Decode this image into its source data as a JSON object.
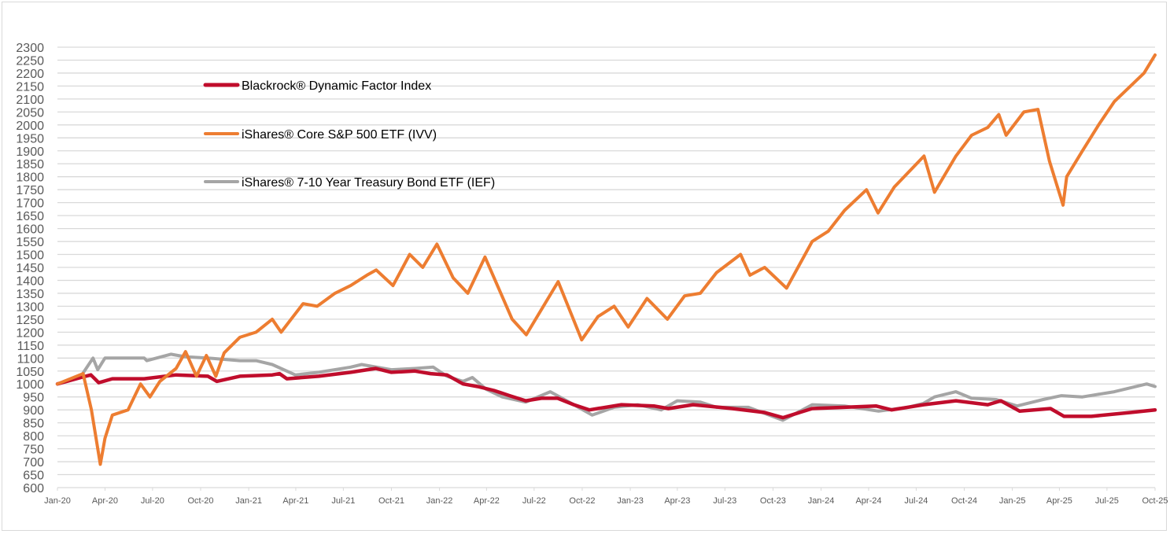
{
  "chart_data": {
    "type": "line",
    "title": "",
    "xlabel": "",
    "ylabel": "",
    "ylim": [
      600,
      2300
    ],
    "ytick_step": 50,
    "xlim": [
      "2020-01-01",
      "2025-10-01"
    ],
    "x_ticks": [
      "Jan-20",
      "Apr-20",
      "Jul-20",
      "Oct-20",
      "Jan-21",
      "Apr-21",
      "Jul-21",
      "Oct-21",
      "Jan-22",
      "Apr-22",
      "Jul-22",
      "Oct-22",
      "Jan-23",
      "Apr-23",
      "Jul-23",
      "Oct-23",
      "Jan-24",
      "Apr-24",
      "Jul-24",
      "Oct-24",
      "Jan-25",
      "Apr-25",
      "Jul-25",
      "Oct-25"
    ],
    "grid": "horizontal",
    "legend_placement": "top-left",
    "series": [
      {
        "name": "Blackrock® Dynamic Factor Index",
        "color": "#c00d2c",
        "points": [
          [
            "2020-01-01",
            1000
          ],
          [
            "2020-02-15",
            1025
          ],
          [
            "2020-03-05",
            1035
          ],
          [
            "2020-03-20",
            1005
          ],
          [
            "2020-04-15",
            1020
          ],
          [
            "2020-06-15",
            1020
          ],
          [
            "2020-08-15",
            1035
          ],
          [
            "2020-10-15",
            1030
          ],
          [
            "2020-11-01",
            1010
          ],
          [
            "2020-12-15",
            1030
          ],
          [
            "2021-02-15",
            1035
          ],
          [
            "2021-03-01",
            1040
          ],
          [
            "2021-03-15",
            1020
          ],
          [
            "2021-05-15",
            1030
          ],
          [
            "2021-07-15",
            1045
          ],
          [
            "2021-09-01",
            1060
          ],
          [
            "2021-10-01",
            1045
          ],
          [
            "2021-11-15",
            1050
          ],
          [
            "2021-12-15",
            1040
          ],
          [
            "2022-01-15",
            1035
          ],
          [
            "2022-02-15",
            1000
          ],
          [
            "2022-03-15",
            990
          ],
          [
            "2022-04-15",
            975
          ],
          [
            "2022-05-15",
            955
          ],
          [
            "2022-06-15",
            935
          ],
          [
            "2022-07-15",
            945
          ],
          [
            "2022-08-15",
            945
          ],
          [
            "2022-09-15",
            920
          ],
          [
            "2022-10-15",
            900
          ],
          [
            "2022-12-15",
            920
          ],
          [
            "2023-02-15",
            915
          ],
          [
            "2023-03-15",
            905
          ],
          [
            "2023-05-01",
            920
          ],
          [
            "2023-07-15",
            905
          ],
          [
            "2023-09-15",
            890
          ],
          [
            "2023-10-20",
            870
          ],
          [
            "2023-12-15",
            905
          ],
          [
            "2024-02-15",
            910
          ],
          [
            "2024-04-15",
            915
          ],
          [
            "2024-05-15",
            900
          ],
          [
            "2024-07-15",
            920
          ],
          [
            "2024-09-15",
            935
          ],
          [
            "2024-11-15",
            920
          ],
          [
            "2024-12-10",
            935
          ],
          [
            "2025-01-15",
            895
          ],
          [
            "2025-03-15",
            905
          ],
          [
            "2025-04-10",
            875
          ],
          [
            "2025-06-01",
            875
          ],
          [
            "2025-08-15",
            890
          ],
          [
            "2025-10-01",
            900
          ]
        ]
      },
      {
        "name": "iShares® Core S&P 500 ETF (IVV)",
        "color": "#ed7d31",
        "points": [
          [
            "2020-01-01",
            1000
          ],
          [
            "2020-02-19",
            1040
          ],
          [
            "2020-03-06",
            900
          ],
          [
            "2020-03-23",
            690
          ],
          [
            "2020-04-01",
            790
          ],
          [
            "2020-04-15",
            880
          ],
          [
            "2020-05-15",
            900
          ],
          [
            "2020-06-08",
            1000
          ],
          [
            "2020-06-26",
            950
          ],
          [
            "2020-07-15",
            1010
          ],
          [
            "2020-08-15",
            1060
          ],
          [
            "2020-09-02",
            1125
          ],
          [
            "2020-09-23",
            1030
          ],
          [
            "2020-10-12",
            1110
          ],
          [
            "2020-10-30",
            1030
          ],
          [
            "2020-11-15",
            1120
          ],
          [
            "2020-12-15",
            1180
          ],
          [
            "2021-01-15",
            1200
          ],
          [
            "2021-02-15",
            1250
          ],
          [
            "2021-03-04",
            1200
          ],
          [
            "2021-04-15",
            1310
          ],
          [
            "2021-05-12",
            1300
          ],
          [
            "2021-06-15",
            1350
          ],
          [
            "2021-07-15",
            1380
          ],
          [
            "2021-08-15",
            1420
          ],
          [
            "2021-09-02",
            1440
          ],
          [
            "2021-10-04",
            1380
          ],
          [
            "2021-11-05",
            1500
          ],
          [
            "2021-11-30",
            1450
          ],
          [
            "2021-12-27",
            1540
          ],
          [
            "2022-01-27",
            1410
          ],
          [
            "2022-02-24",
            1350
          ],
          [
            "2022-03-29",
            1490
          ],
          [
            "2022-05-20",
            1250
          ],
          [
            "2022-06-16",
            1190
          ],
          [
            "2022-08-16",
            1395
          ],
          [
            "2022-09-30",
            1170
          ],
          [
            "2022-10-31",
            1260
          ],
          [
            "2022-12-01",
            1300
          ],
          [
            "2022-12-28",
            1220
          ],
          [
            "2023-02-02",
            1330
          ],
          [
            "2023-03-13",
            1250
          ],
          [
            "2023-04-15",
            1340
          ],
          [
            "2023-05-15",
            1350
          ],
          [
            "2023-06-15",
            1430
          ],
          [
            "2023-07-31",
            1500
          ],
          [
            "2023-08-18",
            1420
          ],
          [
            "2023-09-15",
            1450
          ],
          [
            "2023-10-27",
            1370
          ],
          [
            "2023-12-15",
            1550
          ],
          [
            "2024-01-15",
            1590
          ],
          [
            "2024-02-15",
            1670
          ],
          [
            "2024-03-28",
            1750
          ],
          [
            "2024-04-19",
            1660
          ],
          [
            "2024-05-20",
            1760
          ],
          [
            "2024-07-16",
            1880
          ],
          [
            "2024-08-05",
            1740
          ],
          [
            "2024-09-15",
            1880
          ],
          [
            "2024-10-15",
            1960
          ],
          [
            "2024-11-15",
            1990
          ],
          [
            "2024-12-06",
            2040
          ],
          [
            "2024-12-20",
            1960
          ],
          [
            "2025-01-23",
            2050
          ],
          [
            "2025-02-19",
            2060
          ],
          [
            "2025-03-13",
            1860
          ],
          [
            "2025-04-08",
            1690
          ],
          [
            "2025-04-15",
            1800
          ],
          [
            "2025-05-15",
            1900
          ],
          [
            "2025-06-15",
            2000
          ],
          [
            "2025-07-15",
            2090
          ],
          [
            "2025-08-15",
            2150
          ],
          [
            "2025-09-10",
            2200
          ],
          [
            "2025-10-01",
            2270
          ]
        ]
      },
      {
        "name": "iShares® 7-10 Year Treasury Bond ETF (IEF)",
        "color": "#a5a5a5",
        "points": [
          [
            "2020-01-01",
            1000
          ],
          [
            "2020-02-15",
            1030
          ],
          [
            "2020-03-09",
            1100
          ],
          [
            "2020-03-18",
            1055
          ],
          [
            "2020-04-01",
            1100
          ],
          [
            "2020-06-15",
            1100
          ],
          [
            "2020-06-20",
            1090
          ],
          [
            "2020-08-05",
            1115
          ],
          [
            "2020-09-01",
            1105
          ],
          [
            "2020-10-15",
            1100
          ],
          [
            "2020-12-15",
            1090
          ],
          [
            "2021-01-15",
            1090
          ],
          [
            "2021-02-15",
            1075
          ],
          [
            "2021-03-31",
            1035
          ],
          [
            "2021-05-15",
            1045
          ],
          [
            "2021-07-15",
            1065
          ],
          [
            "2021-08-05",
            1075
          ],
          [
            "2021-10-01",
            1055
          ],
          [
            "2021-11-15",
            1060
          ],
          [
            "2021-12-20",
            1065
          ],
          [
            "2022-01-15",
            1030
          ],
          [
            "2022-02-15",
            1010
          ],
          [
            "2022-03-05",
            1025
          ],
          [
            "2022-03-31",
            980
          ],
          [
            "2022-05-01",
            950
          ],
          [
            "2022-06-15",
            930
          ],
          [
            "2022-08-01",
            970
          ],
          [
            "2022-09-15",
            920
          ],
          [
            "2022-10-20",
            880
          ],
          [
            "2022-12-01",
            910
          ],
          [
            "2023-01-15",
            920
          ],
          [
            "2023-03-01",
            900
          ],
          [
            "2023-04-01",
            935
          ],
          [
            "2023-05-15",
            930
          ],
          [
            "2023-06-15",
            910
          ],
          [
            "2023-08-15",
            910
          ],
          [
            "2023-10-20",
            860
          ],
          [
            "2023-12-15",
            920
          ],
          [
            "2024-02-15",
            915
          ],
          [
            "2024-04-20",
            895
          ],
          [
            "2024-06-15",
            910
          ],
          [
            "2024-07-15",
            925
          ],
          [
            "2024-08-05",
            950
          ],
          [
            "2024-09-15",
            970
          ],
          [
            "2024-10-15",
            945
          ],
          [
            "2024-12-01",
            940
          ],
          [
            "2025-01-10",
            915
          ],
          [
            "2025-03-01",
            940
          ],
          [
            "2025-04-05",
            955
          ],
          [
            "2025-05-15",
            950
          ],
          [
            "2025-07-15",
            970
          ],
          [
            "2025-09-15",
            1000
          ],
          [
            "2025-10-01",
            990
          ]
        ]
      }
    ]
  }
}
